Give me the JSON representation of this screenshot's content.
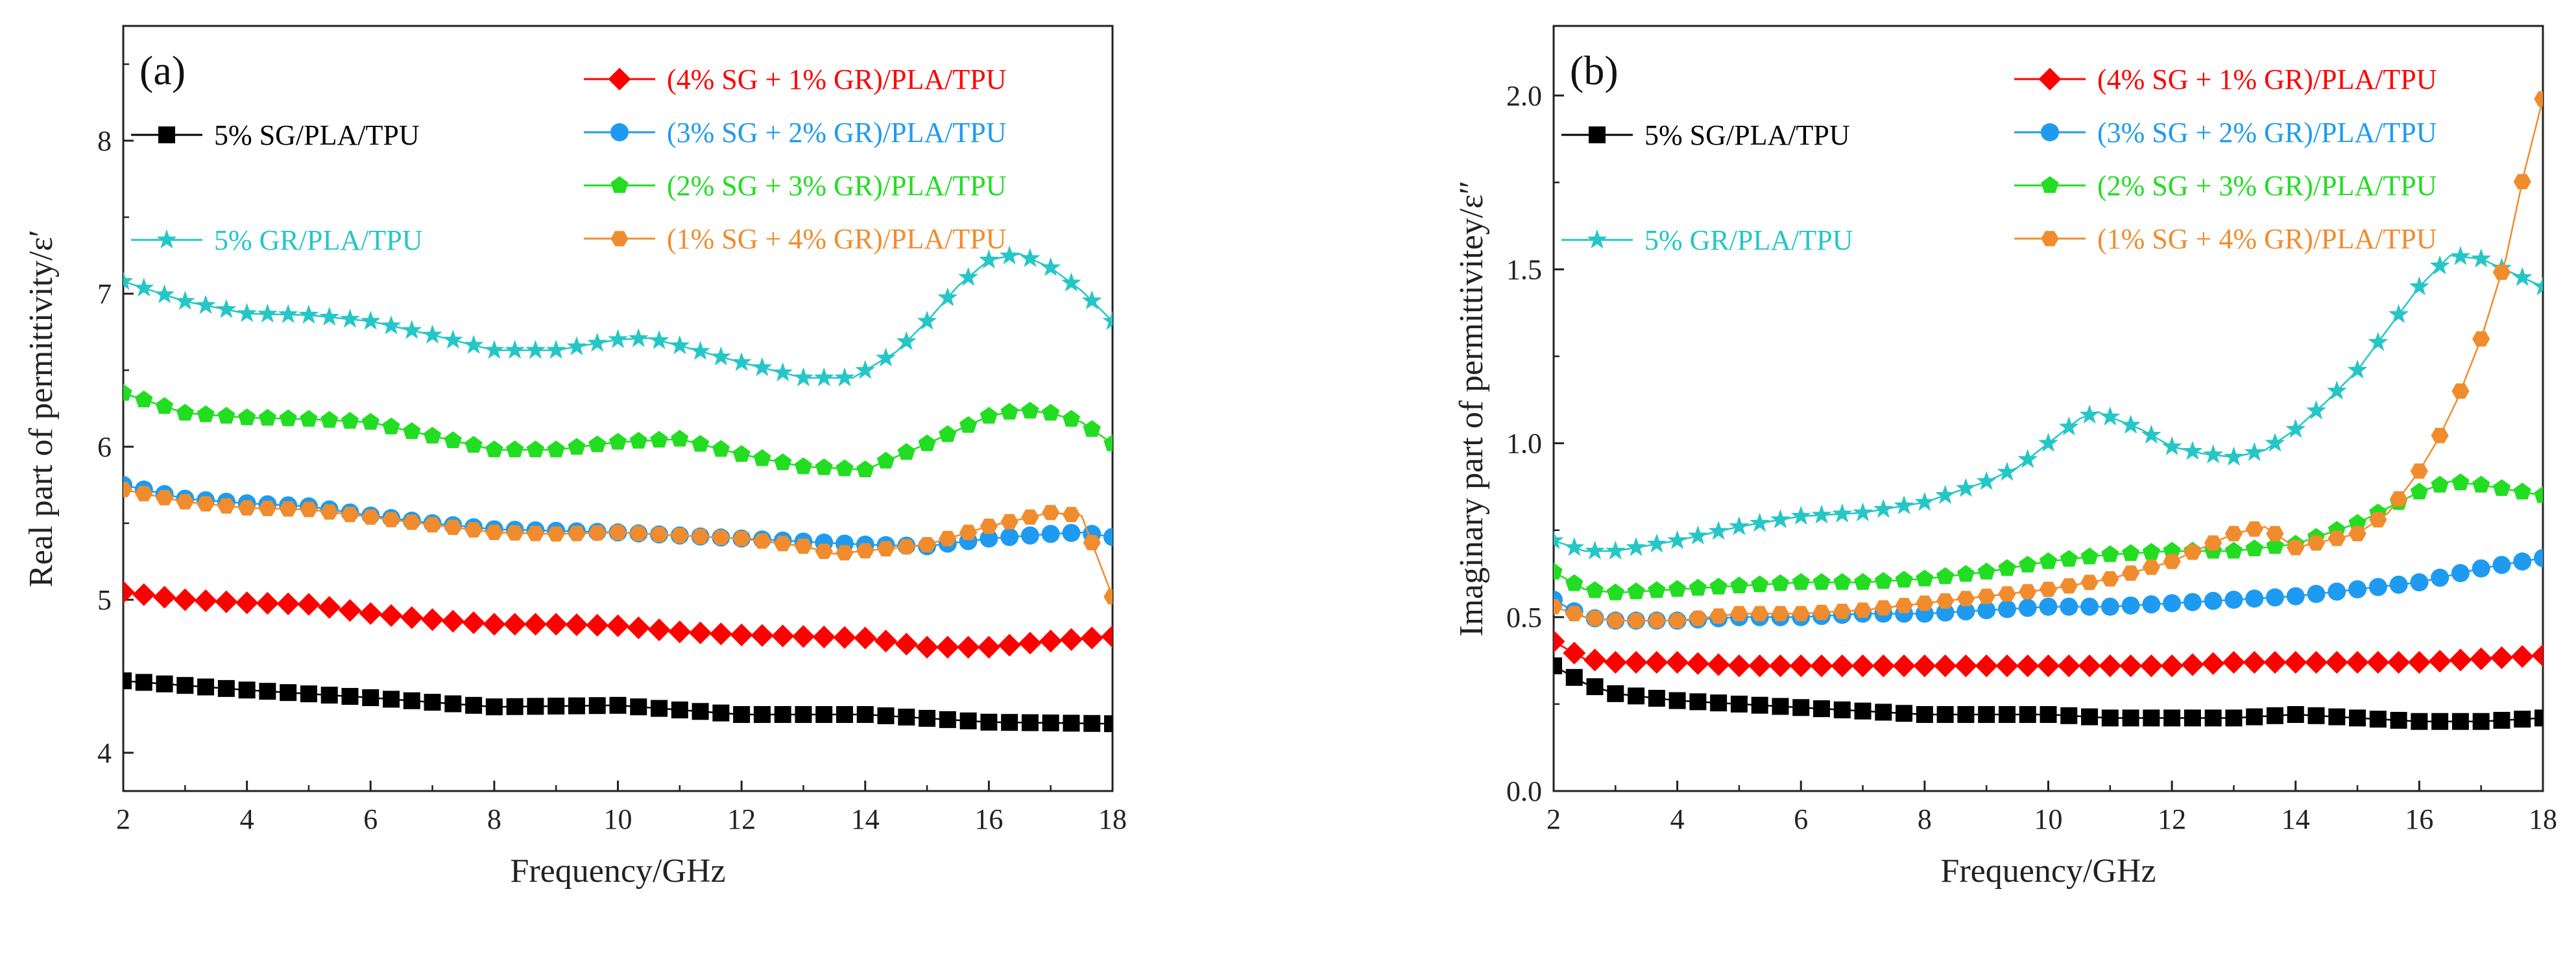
{
  "figure_title": "",
  "chart_data": [
    {
      "type": "line",
      "panel_label": "(a)",
      "title": "",
      "xlabel": "Frequency/GHz",
      "ylabel": "Real part of permittivity/ε′",
      "xlim": [
        2,
        18
      ],
      "ylim": [
        3.75,
        8.75
      ],
      "xticks": [
        2,
        4,
        6,
        8,
        10,
        12,
        14,
        16,
        18
      ],
      "yticks": [
        4,
        5,
        6,
        7,
        8
      ],
      "ytick_decimals": 0,
      "grid": false,
      "series": [
        {
          "name": "5% SG/PLA/TPU",
          "color": "#000000",
          "marker": "square",
          "legend": "left-top",
          "points": [
            [
              2,
              4.47
            ],
            [
              4,
              4.41
            ],
            [
              6,
              4.36
            ],
            [
              8,
              4.3
            ],
            [
              10,
              4.31
            ],
            [
              12,
              4.25
            ],
            [
              14,
              4.25
            ],
            [
              16,
              4.2
            ],
            [
              18,
              4.19
            ]
          ]
        },
        {
          "name": "5% GR/PLA/TPU",
          "color": "#26C6C6",
          "marker": "star",
          "legend": "left-bottom",
          "points": [
            [
              2,
              7.08
            ],
            [
              3,
              6.95
            ],
            [
              4,
              6.87
            ],
            [
              5,
              6.86
            ],
            [
              6,
              6.82
            ],
            [
              7,
              6.73
            ],
            [
              8,
              6.63
            ],
            [
              9,
              6.63
            ],
            [
              10,
              6.7
            ],
            [
              10.5,
              6.71
            ],
            [
              11,
              6.66
            ],
            [
              12,
              6.55
            ],
            [
              13,
              6.45
            ],
            [
              13.8,
              6.45
            ],
            [
              14.5,
              6.62
            ],
            [
              15,
              6.82
            ],
            [
              15.5,
              7.05
            ],
            [
              16,
              7.22
            ],
            [
              16.5,
              7.26
            ],
            [
              17,
              7.17
            ],
            [
              17.5,
              7.02
            ],
            [
              18,
              6.82
            ]
          ]
        },
        {
          "name": "(4% SG + 1% GR)/PLA/TPU",
          "color": "#FF0000",
          "marker": "diamond",
          "legend": "right",
          "points": [
            [
              2,
              5.05
            ],
            [
              3,
              5.0
            ],
            [
              4,
              4.98
            ],
            [
              5,
              4.97
            ],
            [
              6,
              4.91
            ],
            [
              7,
              4.87
            ],
            [
              8,
              4.84
            ],
            [
              9,
              4.84
            ],
            [
              10,
              4.83
            ],
            [
              11,
              4.79
            ],
            [
              12,
              4.77
            ],
            [
              13,
              4.76
            ],
            [
              14,
              4.75
            ],
            [
              15,
              4.69
            ],
            [
              16,
              4.69
            ],
            [
              17,
              4.73
            ],
            [
              18,
              4.76
            ]
          ]
        },
        {
          "name": "(3% SG + 2% GR)/PLA/TPU",
          "color": "#1E9BF0",
          "marker": "circle",
          "legend": "right",
          "points": [
            [
              2,
              5.75
            ],
            [
              3,
              5.66
            ],
            [
              4,
              5.63
            ],
            [
              5,
              5.61
            ],
            [
              6,
              5.55
            ],
            [
              7,
              5.5
            ],
            [
              8,
              5.46
            ],
            [
              9,
              5.45
            ],
            [
              10,
              5.44
            ],
            [
              11,
              5.42
            ],
            [
              12,
              5.4
            ],
            [
              13,
              5.38
            ],
            [
              14,
              5.36
            ],
            [
              15,
              5.35
            ],
            [
              16,
              5.4
            ],
            [
              17,
              5.43
            ],
            [
              17.5,
              5.44
            ],
            [
              18,
              5.41
            ]
          ]
        },
        {
          "name": "(2% SG + 3% GR)/PLA/TPU",
          "color": "#22DD22",
          "marker": "pentagon",
          "legend": "right",
          "points": [
            [
              2,
              6.35
            ],
            [
              3,
              6.22
            ],
            [
              4,
              6.19
            ],
            [
              5,
              6.18
            ],
            [
              6,
              6.16
            ],
            [
              7,
              6.07
            ],
            [
              8,
              5.98
            ],
            [
              9,
              5.98
            ],
            [
              10,
              6.03
            ],
            [
              11,
              6.05
            ],
            [
              12,
              5.95
            ],
            [
              13,
              5.87
            ],
            [
              14,
              5.85
            ],
            [
              15,
              6.02
            ],
            [
              16,
              6.2
            ],
            [
              16.5,
              6.24
            ],
            [
              17,
              6.22
            ],
            [
              17.5,
              6.16
            ],
            [
              18,
              6.02
            ]
          ]
        },
        {
          "name": "(1% SG + 4% GR)/PLA/TPU",
          "color": "#F08C2E",
          "marker": "hexagon",
          "legend": "right",
          "points": [
            [
              2,
              5.72
            ],
            [
              3,
              5.64
            ],
            [
              4,
              5.6
            ],
            [
              5,
              5.59
            ],
            [
              6,
              5.54
            ],
            [
              7,
              5.49
            ],
            [
              8,
              5.44
            ],
            [
              9,
              5.43
            ],
            [
              10,
              5.44
            ],
            [
              11,
              5.42
            ],
            [
              12,
              5.4
            ],
            [
              13,
              5.35
            ],
            [
              13.5,
              5.3
            ],
            [
              14,
              5.32
            ],
            [
              15,
              5.36
            ],
            [
              16,
              5.48
            ],
            [
              17,
              5.57
            ],
            [
              17.5,
              5.55
            ],
            [
              18,
              5.02
            ]
          ]
        }
      ]
    },
    {
      "type": "line",
      "panel_label": "(b)",
      "title": "",
      "xlabel": "Frequency/GHz",
      "ylabel": "Imaginary part of permittivitey/ε″",
      "xlim": [
        2,
        18
      ],
      "ylim": [
        0,
        2.2
      ],
      "xticks": [
        2,
        4,
        6,
        8,
        10,
        12,
        14,
        16,
        18
      ],
      "yticks": [
        0.0,
        0.5,
        1.0,
        1.5,
        2.0
      ],
      "ytick_decimals": 1,
      "grid": false,
      "series": [
        {
          "name": "5% SG/PLA/TPU",
          "color": "#000000",
          "marker": "square",
          "legend": "left-top",
          "points": [
            [
              2,
              0.36
            ],
            [
              2.5,
              0.31
            ],
            [
              3,
              0.28
            ],
            [
              4,
              0.26
            ],
            [
              5,
              0.25
            ],
            [
              6,
              0.24
            ],
            [
              7,
              0.23
            ],
            [
              8,
              0.22
            ],
            [
              9,
              0.22
            ],
            [
              10,
              0.22
            ],
            [
              11,
              0.21
            ],
            [
              12,
              0.21
            ],
            [
              13,
              0.21
            ],
            [
              14,
              0.22
            ],
            [
              15,
              0.21
            ],
            [
              16,
              0.2
            ],
            [
              17,
              0.2
            ],
            [
              18,
              0.21
            ]
          ]
        },
        {
          "name": "5% GR/PLA/TPU",
          "color": "#26C6C6",
          "marker": "star",
          "legend": "left-bottom",
          "points": [
            [
              2,
              0.72
            ],
            [
              2.5,
              0.69
            ],
            [
              3,
              0.69
            ],
            [
              4,
              0.72
            ],
            [
              5,
              0.76
            ],
            [
              6,
              0.79
            ],
            [
              7,
              0.8
            ],
            [
              8,
              0.83
            ],
            [
              9,
              0.89
            ],
            [
              9.5,
              0.93
            ],
            [
              10,
              1.0
            ],
            [
              10.5,
              1.07
            ],
            [
              10.8,
              1.09
            ],
            [
              11.5,
              1.04
            ],
            [
              12,
              0.99
            ],
            [
              12.5,
              0.97
            ],
            [
              13,
              0.96
            ],
            [
              13.5,
              0.98
            ],
            [
              14,
              1.04
            ],
            [
              14.5,
              1.12
            ],
            [
              15,
              1.21
            ],
            [
              15.5,
              1.33
            ],
            [
              16,
              1.45
            ],
            [
              16.5,
              1.54
            ],
            [
              17,
              1.53
            ],
            [
              17.5,
              1.49
            ],
            [
              18,
              1.45
            ]
          ]
        },
        {
          "name": "(4% SG + 1% GR)/PLA/TPU",
          "color": "#FF0000",
          "marker": "diamond",
          "legend": "right",
          "points": [
            [
              2,
              0.43
            ],
            [
              2.5,
              0.38
            ],
            [
              3,
              0.37
            ],
            [
              4,
              0.37
            ],
            [
              5,
              0.36
            ],
            [
              6,
              0.36
            ],
            [
              7,
              0.36
            ],
            [
              8,
              0.36
            ],
            [
              9,
              0.36
            ],
            [
              10,
              0.36
            ],
            [
              11,
              0.36
            ],
            [
              12,
              0.36
            ],
            [
              13,
              0.37
            ],
            [
              14,
              0.37
            ],
            [
              15,
              0.37
            ],
            [
              16,
              0.37
            ],
            [
              17,
              0.38
            ],
            [
              18,
              0.39
            ]
          ]
        },
        {
          "name": "(3% SG + 2% GR)/PLA/TPU",
          "color": "#1E9BF0",
          "marker": "circle",
          "legend": "right",
          "points": [
            [
              2,
              0.55
            ],
            [
              2.5,
              0.5
            ],
            [
              3,
              0.49
            ],
            [
              4,
              0.49
            ],
            [
              5,
              0.5
            ],
            [
              6,
              0.5
            ],
            [
              7,
              0.51
            ],
            [
              8,
              0.51
            ],
            [
              9,
              0.52
            ],
            [
              10,
              0.53
            ],
            [
              11,
              0.53
            ],
            [
              12,
              0.54
            ],
            [
              13,
              0.55
            ],
            [
              14,
              0.56
            ],
            [
              15,
              0.58
            ],
            [
              16,
              0.6
            ],
            [
              17,
              0.64
            ],
            [
              18,
              0.67
            ]
          ]
        },
        {
          "name": "(2% SG + 3% GR)/PLA/TPU",
          "color": "#22DD22",
          "marker": "pentagon",
          "legend": "right",
          "points": [
            [
              2,
              0.63
            ],
            [
              2.5,
              0.58
            ],
            [
              3,
              0.57
            ],
            [
              4,
              0.58
            ],
            [
              5,
              0.59
            ],
            [
              6,
              0.6
            ],
            [
              7,
              0.6
            ],
            [
              8,
              0.61
            ],
            [
              9,
              0.63
            ],
            [
              10,
              0.66
            ],
            [
              11,
              0.68
            ],
            [
              12,
              0.69
            ],
            [
              13,
              0.69
            ],
            [
              14,
              0.71
            ],
            [
              15,
              0.77
            ],
            [
              16,
              0.86
            ],
            [
              16.5,
              0.89
            ],
            [
              17,
              0.88
            ],
            [
              18,
              0.85
            ]
          ]
        },
        {
          "name": "(1% SG + 4% GR)/PLA/TPU",
          "color": "#F08C2E",
          "marker": "hexagon",
          "legend": "right",
          "points": [
            [
              2,
              0.53
            ],
            [
              2.5,
              0.5
            ],
            [
              3,
              0.49
            ],
            [
              4,
              0.49
            ],
            [
              5,
              0.51
            ],
            [
              6,
              0.51
            ],
            [
              7,
              0.52
            ],
            [
              8,
              0.54
            ],
            [
              9,
              0.56
            ],
            [
              10,
              0.58
            ],
            [
              11,
              0.61
            ],
            [
              12,
              0.66
            ],
            [
              12.5,
              0.7
            ],
            [
              13,
              0.74
            ],
            [
              13.5,
              0.76
            ],
            [
              14,
              0.7
            ],
            [
              15,
              0.74
            ],
            [
              15.5,
              0.8
            ],
            [
              16,
              0.92
            ],
            [
              16.3,
              1.01
            ],
            [
              16.6,
              1.12
            ],
            [
              17,
              1.3
            ],
            [
              17.4,
              1.53
            ],
            [
              17.7,
              1.78
            ],
            [
              18,
              1.99
            ]
          ]
        }
      ]
    }
  ]
}
